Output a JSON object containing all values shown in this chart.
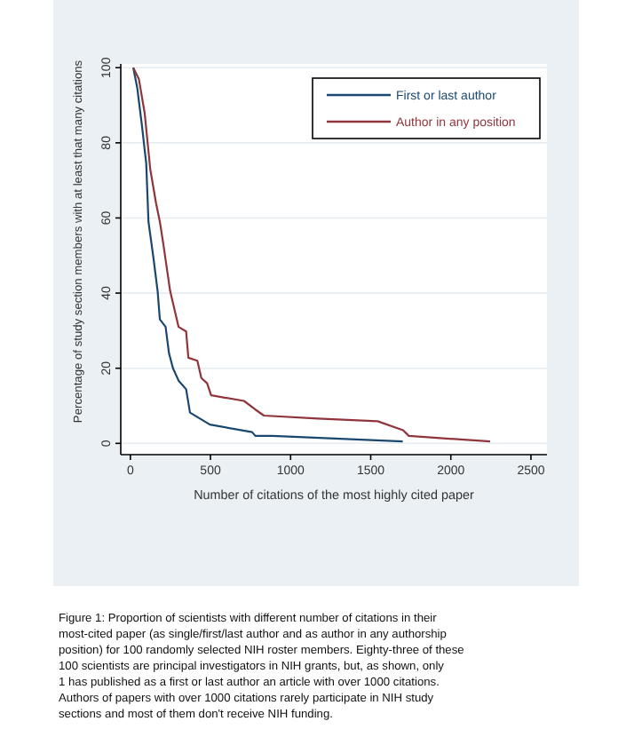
{
  "chart_data": {
    "type": "line",
    "xlabel": "Number of citations of the most highly cited paper",
    "ylabel": "Percentage of study section members with at least that many citations",
    "xlim": [
      -60,
      2600
    ],
    "xticks": [
      0,
      500,
      1000,
      1500,
      2000,
      2500
    ],
    "ylim": [
      -3,
      101
    ],
    "yticks": [
      0,
      20,
      40,
      60,
      80,
      100
    ],
    "grid": "y",
    "legend": "top right",
    "line_style": "solid",
    "marker": "none",
    "series": [
      {
        "name": "First or last author",
        "color": "#1a476f",
        "x": [
          18,
          43,
          71,
          99,
          113,
          142,
          170,
          184,
          220,
          241,
          266,
          301,
          348,
          372,
          496,
          760,
          780,
          887,
          1700
        ],
        "values": [
          100,
          94.6,
          85,
          74.5,
          59,
          50,
          40.6,
          33,
          31,
          24,
          20,
          16.7,
          14.4,
          8.2,
          5,
          3,
          2,
          2,
          0.5
        ]
      },
      {
        "name": "Author in any position",
        "color": "#90353b",
        "x": [
          18,
          53,
          89,
          124,
          160,
          184,
          206,
          248,
          301,
          348,
          362,
          418,
          443,
          479,
          504,
          709,
          780,
          833,
          1170,
          1543,
          1702,
          1738,
          2245
        ],
        "values": [
          100,
          97,
          88,
          73,
          64,
          59,
          53,
          40.6,
          31,
          29.8,
          22.8,
          22,
          17.4,
          16,
          12.8,
          11.3,
          9,
          7.4,
          6.6,
          5.9,
          3.5,
          2,
          0.5
        ]
      }
    ],
    "annotations": [
      "Figure 1: Proportion of scientists with different number of citations in their most-cited paper (as single/first/last author and as author in any authorship position) for 100 randomly selected NIH roster members. Eighty-three of these 100 scientists are principal investigators in NIH grants, but, as shown, only 1 has published as a first or last author an article with over 1000 citations. Authors of papers with over 1000 citations rarely participate in NIH study sections and most of them don't receive NIH funding."
    ]
  }
}
